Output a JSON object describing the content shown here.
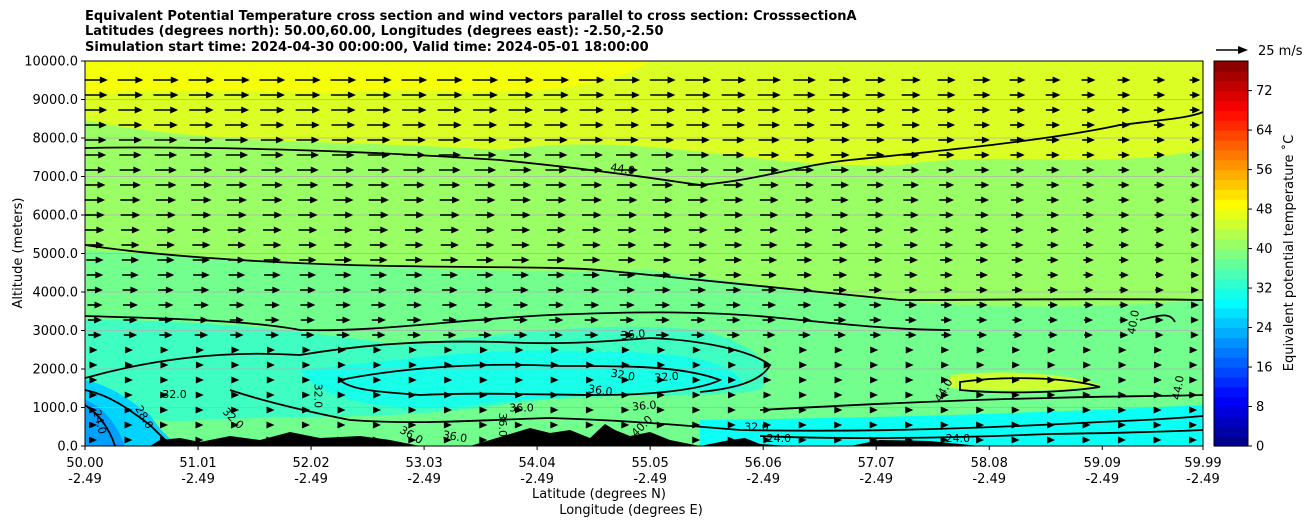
{
  "title_lines": [
    "Equivalent Potential Temperature cross section and wind vectors parallel to cross section: CrosssectionA",
    "Latitudes (degrees north): 50.00,60.00, Longitudes (degrees east): -2.50,-2.50",
    "Simulation start time: 2024-04-30 00:00:00, Valid time: 2024-05-01 18:00:00"
  ],
  "chart_data": {
    "type": "heatmap",
    "ylabel": "Altitude (meters)",
    "xlabel_lines": [
      "Latitude (degrees N)",
      "Longitude (degrees E)"
    ],
    "ylim": [
      0,
      10000
    ],
    "y_ticks": [
      "0.0",
      "1000.0",
      "2000.0",
      "3000.0",
      "4000.0",
      "5000.0",
      "6000.0",
      "7000.0",
      "8000.0",
      "9000.0",
      "10000.0"
    ],
    "x_ticks": [
      {
        "lat": "50.00",
        "lon": "-2.49"
      },
      {
        "lat": "51.01",
        "lon": "-2.49"
      },
      {
        "lat": "52.02",
        "lon": "-2.49"
      },
      {
        "lat": "53.03",
        "lon": "-2.49"
      },
      {
        "lat": "54.04",
        "lon": "-2.49"
      },
      {
        "lat": "55.05",
        "lon": "-2.49"
      },
      {
        "lat": "56.06",
        "lon": "-2.49"
      },
      {
        "lat": "57.07",
        "lon": "-2.49"
      },
      {
        "lat": "58.08",
        "lon": "-2.49"
      },
      {
        "lat": "59.09",
        "lon": "-2.49"
      },
      {
        "lat": "59.99",
        "lon": "-2.49"
      }
    ],
    "xlim_lat": [
      50.0,
      59.99
    ],
    "grid": "horizontal",
    "colorbar": {
      "label": "Equivalent potential temperature $^\\circ$C",
      "label_display": "Equivalent potential temperature ˚C",
      "ticks": [
        "0",
        "8",
        "16",
        "24",
        "32",
        "40",
        "48",
        "56",
        "64",
        "72"
      ],
      "range": [
        0,
        78
      ]
    },
    "quiver_key": {
      "label": "25 m/s",
      "value": 25
    },
    "contour_labels": [
      {
        "text": "44.0",
        "lat": 54.8,
        "alt": 7100,
        "rot": 8
      },
      {
        "text": "36.0",
        "lat": 54.9,
        "alt": 2800,
        "rot": -5
      },
      {
        "text": "32.0",
        "lat": 54.8,
        "alt": 1750,
        "rot": 10
      },
      {
        "text": "32.0",
        "lat": 55.2,
        "alt": 1700,
        "rot": -5
      },
      {
        "text": "36.0",
        "lat": 54.6,
        "alt": 1350,
        "rot": 8
      },
      {
        "text": "36.0",
        "lat": 55.0,
        "alt": 950,
        "rot": -5
      },
      {
        "text": "36.0",
        "lat": 53.9,
        "alt": 900,
        "rot": 0
      },
      {
        "text": "32.0",
        "lat": 50.8,
        "alt": 1250,
        "rot": 0
      },
      {
        "text": "24.0",
        "lat": 50.1,
        "alt": 600,
        "rot": 75
      },
      {
        "text": "28.0",
        "lat": 50.5,
        "alt": 700,
        "rot": 60
      },
      {
        "text": "32.0",
        "lat": 51.3,
        "alt": 650,
        "rot": 45
      },
      {
        "text": "32.0",
        "lat": 52.05,
        "alt": 1300,
        "rot": 90
      },
      {
        "text": "36.0",
        "lat": 52.9,
        "alt": 200,
        "rot": 30
      },
      {
        "text": "36.0",
        "lat": 53.3,
        "alt": 150,
        "rot": 10
      },
      {
        "text": "36.0",
        "lat": 53.7,
        "alt": 550,
        "rot": 90
      },
      {
        "text": "40.0",
        "lat": 55.0,
        "alt": 450,
        "rot": -45
      },
      {
        "text": "32.0",
        "lat": 56.0,
        "alt": 400,
        "rot": 0
      },
      {
        "text": "24.0",
        "lat": 56.2,
        "alt": 100,
        "rot": 0
      },
      {
        "text": "24.0",
        "lat": 57.8,
        "alt": 100,
        "rot": 0
      },
      {
        "text": "44.0",
        "lat": 57.7,
        "alt": 1400,
        "rot": -60
      },
      {
        "text": "44.0",
        "lat": 59.8,
        "alt": 1500,
        "rot": -80
      },
      {
        "text": "40.0",
        "lat": 59.4,
        "alt": 3200,
        "rot": -80
      }
    ],
    "theta_e_field_note_free": true
  },
  "colors": {
    "contour": "#000000",
    "arrow": "#000000",
    "grid": "#b0b0b0",
    "terrain": "#000000"
  }
}
